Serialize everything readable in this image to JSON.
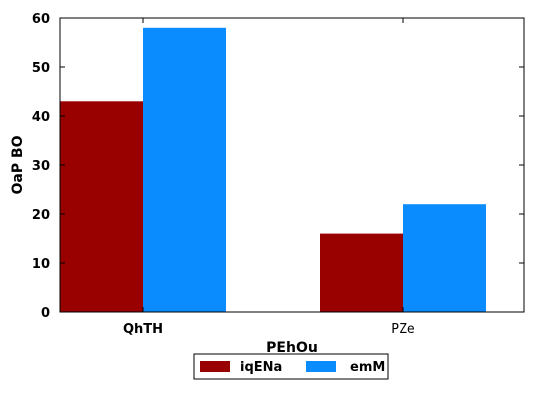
{
  "chart_data": {
    "type": "bar",
    "categories": [
      "QhTH",
      "PZe"
    ],
    "series": [
      {
        "name": "iqENa",
        "values": [
          43,
          16
        ],
        "color": "#990000"
      },
      {
        "name": "emM",
        "values": [
          58,
          22
        ],
        "color": "#0a8cff"
      }
    ],
    "title": "",
    "xlabel": "PEhOu",
    "ylabel": "OaP BO",
    "ylim": [
      0,
      60
    ],
    "yticks": [
      0,
      10,
      20,
      30,
      40,
      50,
      60
    ],
    "grid": false,
    "legend_position": "bottom-center"
  }
}
